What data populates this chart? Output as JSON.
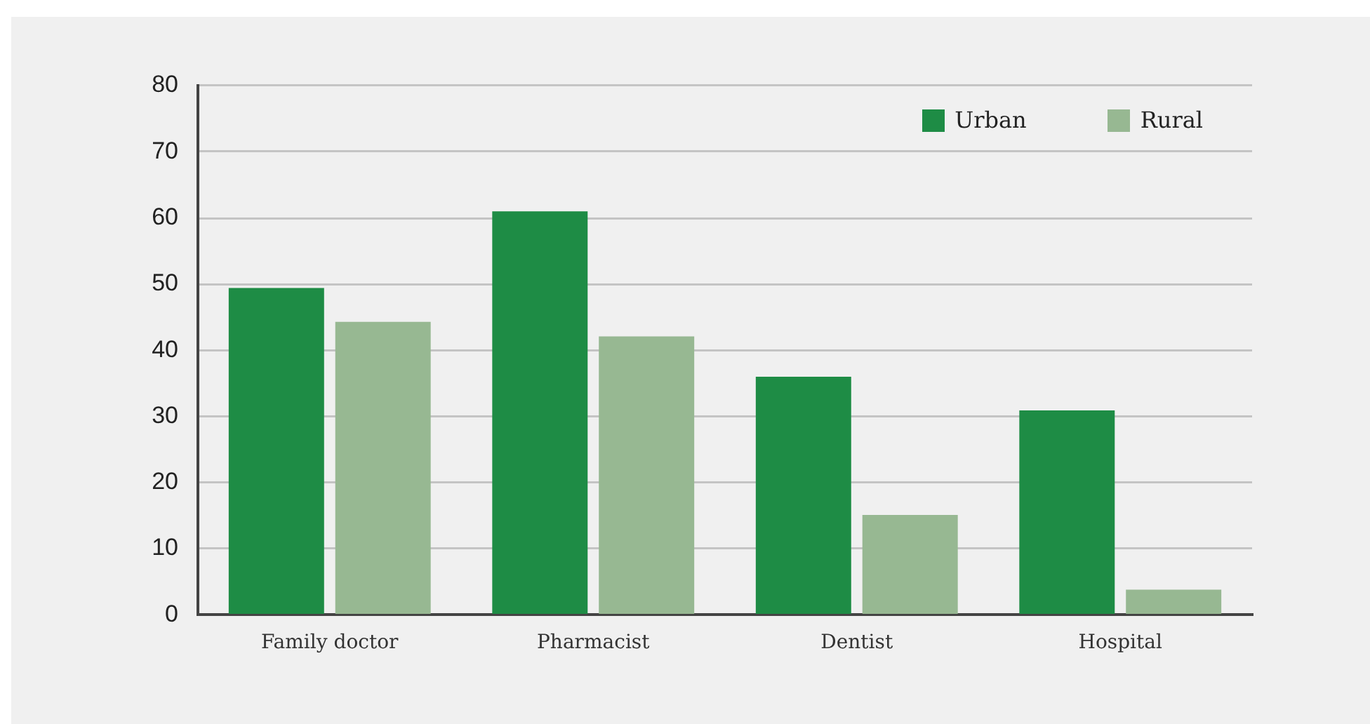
{
  "chart_data": {
    "type": "bar",
    "categories": [
      "Family doctor",
      "Pharmacist",
      "Dentist",
      "Hospital"
    ],
    "series": [
      {
        "name": "Urban",
        "color": "#1e8c45",
        "values": [
          49.4,
          61,
          36,
          30.9
        ]
      },
      {
        "name": "Rural",
        "color": "#97b892",
        "values": [
          44.3,
          42.1,
          15.1,
          3.8
        ]
      }
    ],
    "ylim": [
      0,
      80
    ],
    "yticks": [
      0,
      10,
      20,
      30,
      40,
      50,
      60,
      70,
      80
    ],
    "grid": "y",
    "legend": "top right"
  }
}
